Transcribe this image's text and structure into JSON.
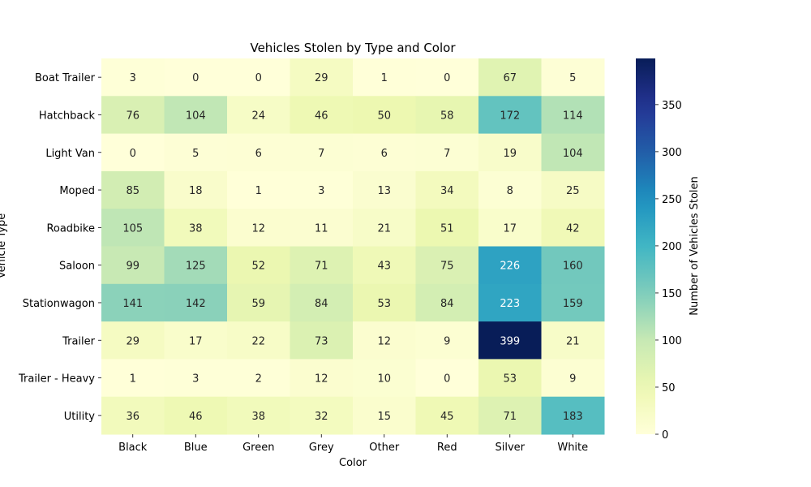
{
  "chart_data": {
    "type": "heatmap",
    "title": "Vehicles Stolen by Type and Color",
    "xlabel": "Color",
    "ylabel": "Vehicle Type",
    "x_categories": [
      "Black",
      "Blue",
      "Green",
      "Grey",
      "Other",
      "Red",
      "Silver",
      "White"
    ],
    "y_categories": [
      "Boat Trailer",
      "Hatchback",
      "Light Van",
      "Moped",
      "Roadbike",
      "Saloon",
      "Stationwagon",
      "Trailer",
      "Trailer - Heavy",
      "Utility"
    ],
    "values": [
      [
        3,
        0,
        0,
        29,
        1,
        0,
        67,
        5
      ],
      [
        76,
        104,
        24,
        46,
        50,
        58,
        172,
        114
      ],
      [
        0,
        5,
        6,
        7,
        6,
        7,
        19,
        104
      ],
      [
        85,
        18,
        1,
        3,
        13,
        34,
        8,
        25
      ],
      [
        105,
        38,
        12,
        11,
        21,
        51,
        17,
        42
      ],
      [
        99,
        125,
        52,
        71,
        43,
        75,
        226,
        160
      ],
      [
        141,
        142,
        59,
        84,
        53,
        84,
        223,
        159
      ],
      [
        29,
        17,
        22,
        73,
        12,
        9,
        399,
        21
      ],
      [
        1,
        3,
        2,
        12,
        10,
        0,
        53,
        9
      ],
      [
        36,
        46,
        38,
        32,
        15,
        45,
        71,
        183
      ]
    ],
    "colormap": "YlGnBu",
    "vmin": 0,
    "vmax": 399,
    "colorbar": {
      "label": "Number of Vehicles Stolen",
      "ticks": [
        0,
        50,
        100,
        150,
        200,
        250,
        300,
        350
      ]
    },
    "annotations": true,
    "grid": false
  }
}
